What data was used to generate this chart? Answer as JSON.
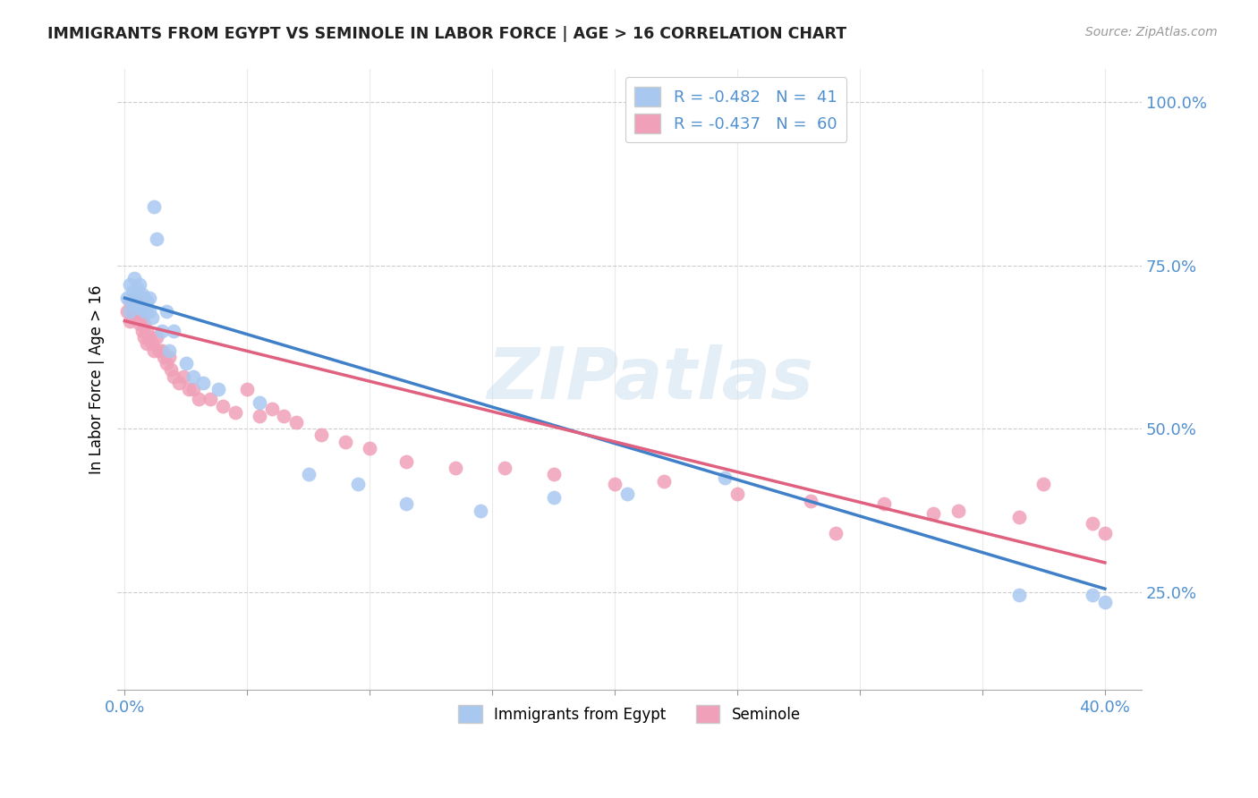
{
  "title": "IMMIGRANTS FROM EGYPT VS SEMINOLE IN LABOR FORCE | AGE > 16 CORRELATION CHART",
  "source": "Source: ZipAtlas.com",
  "ylabel_label": "In Labor Force | Age > 16",
  "legend_label1": "Immigrants from Egypt",
  "legend_label2": "Seminole",
  "legend_R1": "R = -0.482",
  "legend_N1": "N =  41",
  "legend_R2": "R = -0.437",
  "legend_N2": "N =  60",
  "watermark": "ZIPatlas",
  "color_blue": "#a8c8f0",
  "color_pink": "#f0a0b8",
  "color_blue_line": "#4080c8",
  "color_pink_line": "#e06080",
  "color_axis": "#5090d0",
  "xlim_min": -0.003,
  "xlim_max": 0.415,
  "ylim_min": 0.1,
  "ylim_max": 1.05,
  "egypt_x": [
    0.001,
    0.002,
    0.002,
    0.003,
    0.003,
    0.004,
    0.004,
    0.005,
    0.005,
    0.006,
    0.006,
    0.007,
    0.007,
    0.008,
    0.008,
    0.009,
    0.009,
    0.01,
    0.01,
    0.011,
    0.012,
    0.013,
    0.015,
    0.017,
    0.018,
    0.02,
    0.025,
    0.028,
    0.032,
    0.038,
    0.055,
    0.075,
    0.095,
    0.115,
    0.145,
    0.175,
    0.205,
    0.245,
    0.365,
    0.395,
    0.4
  ],
  "egypt_y": [
    0.7,
    0.72,
    0.68,
    0.71,
    0.69,
    0.73,
    0.695,
    0.715,
    0.7,
    0.72,
    0.685,
    0.695,
    0.705,
    0.68,
    0.7,
    0.685,
    0.695,
    0.7,
    0.68,
    0.67,
    0.84,
    0.79,
    0.65,
    0.68,
    0.62,
    0.65,
    0.6,
    0.58,
    0.57,
    0.56,
    0.54,
    0.43,
    0.415,
    0.385,
    0.375,
    0.395,
    0.4,
    0.425,
    0.245,
    0.245,
    0.235
  ],
  "seminole_x": [
    0.001,
    0.002,
    0.002,
    0.003,
    0.003,
    0.004,
    0.004,
    0.005,
    0.005,
    0.006,
    0.006,
    0.007,
    0.007,
    0.008,
    0.008,
    0.009,
    0.009,
    0.01,
    0.011,
    0.012,
    0.013,
    0.014,
    0.015,
    0.016,
    0.017,
    0.018,
    0.019,
    0.02,
    0.022,
    0.024,
    0.026,
    0.028,
    0.03,
    0.035,
    0.04,
    0.045,
    0.05,
    0.055,
    0.06,
    0.065,
    0.07,
    0.08,
    0.09,
    0.1,
    0.115,
    0.135,
    0.155,
    0.175,
    0.2,
    0.22,
    0.25,
    0.28,
    0.31,
    0.34,
    0.365,
    0.375,
    0.395,
    0.4,
    0.29,
    0.33
  ],
  "seminole_y": [
    0.68,
    0.695,
    0.665,
    0.69,
    0.67,
    0.7,
    0.68,
    0.695,
    0.675,
    0.68,
    0.66,
    0.67,
    0.65,
    0.66,
    0.64,
    0.65,
    0.63,
    0.64,
    0.63,
    0.62,
    0.64,
    0.62,
    0.62,
    0.61,
    0.6,
    0.61,
    0.59,
    0.58,
    0.57,
    0.58,
    0.56,
    0.56,
    0.545,
    0.545,
    0.535,
    0.525,
    0.56,
    0.52,
    0.53,
    0.52,
    0.51,
    0.49,
    0.48,
    0.47,
    0.45,
    0.44,
    0.44,
    0.43,
    0.415,
    0.42,
    0.4,
    0.39,
    0.385,
    0.375,
    0.365,
    0.415,
    0.355,
    0.34,
    0.34,
    0.37
  ],
  "trendline_egypt_x0": 0.0,
  "trendline_egypt_y0": 0.7,
  "trendline_egypt_x1": 0.4,
  "trendline_egypt_y1": 0.255,
  "trendline_seminole_x0": 0.0,
  "trendline_seminole_y0": 0.665,
  "trendline_seminole_x1": 0.4,
  "trendline_seminole_y1": 0.295
}
